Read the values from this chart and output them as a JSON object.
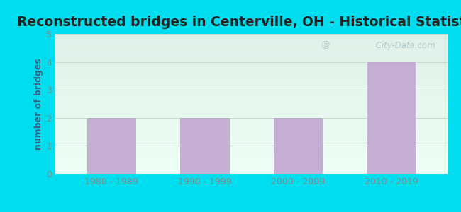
{
  "title": "Reconstructed bridges in Centerville, OH - Historical Statistics",
  "categories": [
    "1980 - 1989",
    "1990 - 1999",
    "2000 - 2009",
    "2010 - 2019"
  ],
  "values": [
    2,
    2,
    2,
    4
  ],
  "bar_color": "#c4aed4",
  "bar_edge_color": "#b8a2cc",
  "ylabel": "number of bridges",
  "ylabel_color": "#336688",
  "ylim": [
    0,
    5
  ],
  "yticks": [
    0,
    1,
    2,
    3,
    4,
    5
  ],
  "title_fontsize": 13.5,
  "axis_label_fontsize": 9,
  "tick_fontsize": 9,
  "background_outer": "#00ddee",
  "background_plot_top": "#dff0e8",
  "background_plot_bottom": "#edfff5",
  "grid_color": "#c8ddc8",
  "watermark_text": " City-Data.com",
  "watermark_color": "#aac8cc",
  "tick_color": "#888888",
  "title_color": "#222222"
}
